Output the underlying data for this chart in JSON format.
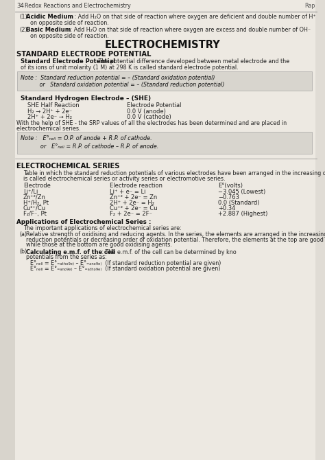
{
  "page_bg": "#ede9e2",
  "left_bg": "#d8d4cc",
  "note_bg": "#d8d5ce",
  "header_line_color": "#999999",
  "page_num": "34",
  "header_text": "Redox Reactions and Electrochemistry",
  "header_right": "Rap",
  "title": "ELECTROCHEMISTRY",
  "intro1_label": "(1)",
  "intro1_bold": "Acidic Medium",
  "intro1_text": " : Add H₂O on that side of reaction where oxygen are deficient and double number of H⁺",
  "intro1_cont": "on opposite side of reaction.",
  "intro2_label": "(2)",
  "intro2_bold": "Basic Medium",
  "intro2_text": " : Add H₂O on that side of reaction where oxygen are excess and double number of OH⁻",
  "intro2_cont": "on opposite side of reaction.",
  "section1_title": "STANDARD ELECTRODE POTENTIAL",
  "sep_bold": "Standard Electrode Potential",
  "sep_text": " : The potential difference developed between metal electrode and the solution of its ions of unit molarity (1 M) at 298 K is called standard electrode potential.",
  "note1_line1": "Note :  Standard reduction potential = – (Standard oxidation potential)",
  "note1_line2": "           or   Standard oxidation potential = – (Standard reduction potential)",
  "she_title": "Standard Hydrogen Electrode – (SHE)",
  "she_col1": "SHE Half Reaction",
  "she_col2": "Electrode Potential",
  "she_r1c1": "H₂ → 2H⁺ + 2e⁻",
  "she_r1c2": "0.0 V (anode)",
  "she_r2c1": "2H⁺ + 2e⁻ → H₂",
  "she_r2c2": "0.0 V (cathode)",
  "she_note1": "With the help of SHE - the SRP values of all the electrodes has been determined and are placed in",
  "she_note2": "electrochemical series.",
  "note2_line1": "Note :   E°ₙₑₗₗ = O.P. of anode + R.P. of cathode.",
  "note2_line2": "           or   E°ₙₑₗₗ = R.P. of cathode – R.P. of anode.",
  "section2_title": "ELECTROCHEMICAL SERIES",
  "s2_intro1": "Table in which the standard reduction potentials of various electrodes have been arranged in the increasing order",
  "s2_intro2": "is called electrochemical series or activity series or electromotive series.",
  "th_electrode": "Electrode",
  "th_reaction": "Electrode reaction",
  "th_epot": "E°(volts)",
  "table_rows": [
    [
      "Li⁺/Li",
      "Li⁺ + e⁻ = Li",
      "−3.045 (Lowest)"
    ],
    [
      "Zn⁺²/Zn",
      "Zn⁺² + 2e⁻ = Zn",
      "−0.763"
    ],
    [
      "H⁺/H₂, Pt",
      "2H⁺ + 2e⁻ = H₂",
      "0.0 (Standard)"
    ],
    [
      "Cu²⁺/Cu",
      "Cu⁺² + 2e⁻ = Cu",
      "+0.34"
    ],
    [
      "F₂/F⁻, Pt",
      "F₂ + 2e⁻ = 2F⁻",
      "+2.887 (Highest)"
    ]
  ],
  "apps_title": "Applications of Electrochemical Series :",
  "apps_intro": "The important applications of electrochemical series are:",
  "app_a_label": "(a)",
  "app_a_text": " Relative strength of oxidising and reducing agents. In the series, the elements are arranged in the increasing order  of  reduction potentials or decreasing order of oxidation potential. Therefore, the elements at the top are good reducing agents while those at the bottom are good oxidising agents.",
  "app_b_label": "(b)",
  "app_b_bold": "Calculating e.m.f. of the cell",
  "app_b_text": " : The e.m.f. of the cell can be determined by knowing the standard electrode potentials from the series as:",
  "formula1": "E°ₙₑₗₗ = E°₌ₐₜₕₒ₉ₑ₎ – E°₌ₐₙₒ₉ₑ₎  (If standard reduction potential are given)",
  "formula2": "E°ₙₑₗₗ = E°₌ₐₙₒ₉ₑ₎ – E°₌ₐₜₕₒ₉ₑ₎  (If standard oxidation potential are given)"
}
